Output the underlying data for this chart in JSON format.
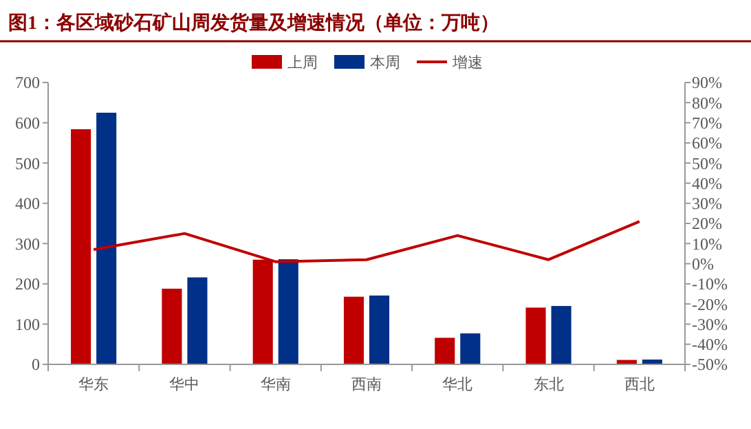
{
  "chart_data": {
    "type": "bar",
    "title": "图1：各区域砂石矿山周发货量及增速情况（单位：万吨）",
    "categories": [
      "华东",
      "华中",
      "华南",
      "西南",
      "华北",
      "东北",
      "西北"
    ],
    "series": [
      {
        "name": "上周",
        "color": "#c00000",
        "values": [
          584,
          188,
          260,
          168,
          66,
          141,
          11
        ]
      },
      {
        "name": "本周",
        "color": "#003087",
        "values": [
          625,
          216,
          261,
          171,
          77,
          145,
          12
        ]
      },
      {
        "name": "增速",
        "type": "line",
        "axis": "y2",
        "color": "#c00000",
        "values": [
          7,
          15,
          1,
          2,
          14,
          2,
          21
        ]
      }
    ],
    "ylim": [
      0,
      700
    ],
    "yticks": [
      0,
      100,
      200,
      300,
      400,
      500,
      600,
      700
    ],
    "y2lim": [
      -50,
      90
    ],
    "y2ticks": [
      {
        "value": -50,
        "label": "-50%"
      },
      {
        "value": -40,
        "label": "-40%"
      },
      {
        "value": -30,
        "label": "-30%"
      },
      {
        "value": -20,
        "label": "-20%"
      },
      {
        "value": -10,
        "label": "-10%"
      },
      {
        "value": 0,
        "label": "0%"
      },
      {
        "value": 10,
        "label": "10%"
      },
      {
        "value": 20,
        "label": "20%"
      },
      {
        "value": 30,
        "label": "30%"
      },
      {
        "value": 40,
        "label": "40%"
      },
      {
        "value": 50,
        "label": "50%"
      },
      {
        "value": 60,
        "label": "60%"
      },
      {
        "value": 70,
        "label": "70%"
      },
      {
        "value": 80,
        "label": "80%"
      },
      {
        "value": 90,
        "label": "90%"
      }
    ],
    "legend": "top",
    "grid": false,
    "marker": "none",
    "line_style": "solid"
  }
}
